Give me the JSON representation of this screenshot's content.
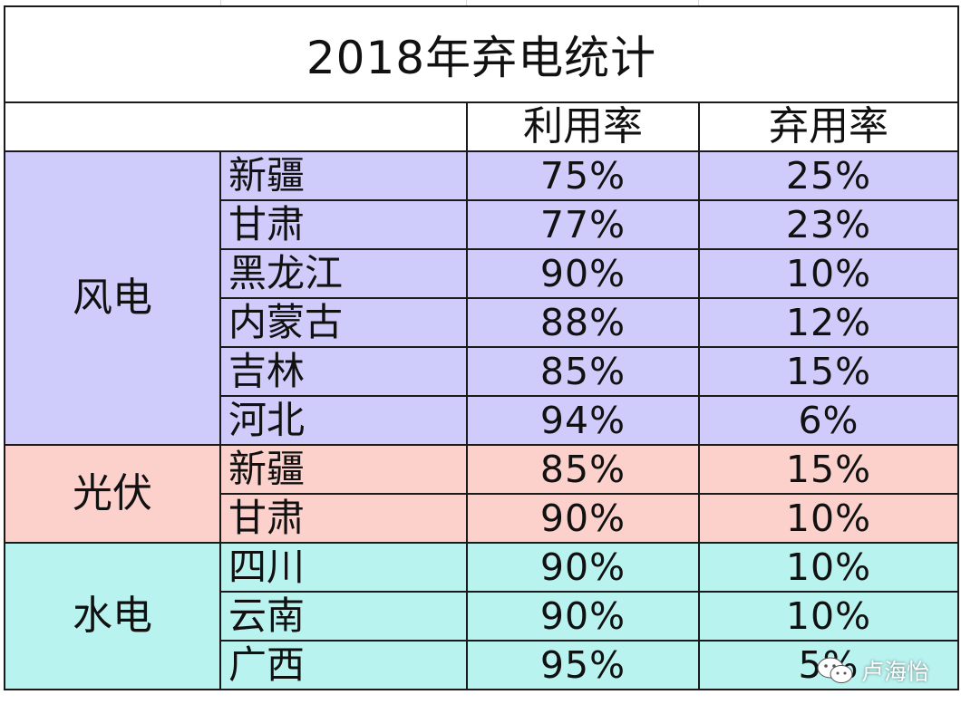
{
  "title": "2018年弃电统计",
  "columns": {
    "blank": "",
    "utilization": "利用率",
    "curtailment": "弃用率"
  },
  "colors": {
    "wind": "#cfcbfb",
    "solar": "#fcd0cb",
    "hydro": "#b9f3f0",
    "border": "#1a1a1a"
  },
  "groups": [
    {
      "name": "风电",
      "rows": [
        {
          "region": "新疆",
          "utilization": "75%",
          "curtailment": "25%"
        },
        {
          "region": "甘肃",
          "utilization": "77%",
          "curtailment": "23%"
        },
        {
          "region": "黑龙江",
          "utilization": "90%",
          "curtailment": "10%"
        },
        {
          "region": "内蒙古",
          "utilization": "88%",
          "curtailment": "12%"
        },
        {
          "region": "吉林",
          "utilization": "85%",
          "curtailment": "15%"
        },
        {
          "region": "河北",
          "utilization": "94%",
          "curtailment": "6%"
        }
      ]
    },
    {
      "name": "光伏",
      "rows": [
        {
          "region": "新疆",
          "utilization": "85%",
          "curtailment": "15%"
        },
        {
          "region": "甘肃",
          "utilization": "90%",
          "curtailment": "10%"
        }
      ]
    },
    {
      "name": "水电",
      "rows": [
        {
          "region": "四川",
          "utilization": "90%",
          "curtailment": "10%"
        },
        {
          "region": "云南",
          "utilization": "90%",
          "curtailment": "10%"
        },
        {
          "region": "广西",
          "utilization": "95%",
          "curtailment": "5%"
        }
      ]
    }
  ],
  "watermark": {
    "icon": "wechat-icon",
    "text": "卢海怡"
  },
  "chart_data": {
    "type": "table",
    "title": "2018年弃电统计",
    "columns": [
      "",
      "",
      "利用率",
      "弃用率"
    ],
    "rows": [
      [
        "风电",
        "新疆",
        "75%",
        "25%"
      ],
      [
        "风电",
        "甘肃",
        "77%",
        "23%"
      ],
      [
        "风电",
        "黑龙江",
        "90%",
        "10%"
      ],
      [
        "风电",
        "内蒙古",
        "88%",
        "12%"
      ],
      [
        "风电",
        "吉林",
        "85%",
        "15%"
      ],
      [
        "风电",
        "河北",
        "94%",
        "6%"
      ],
      [
        "光伏",
        "新疆",
        "85%",
        "15%"
      ],
      [
        "光伏",
        "甘肃",
        "90%",
        "10%"
      ],
      [
        "水电",
        "四川",
        "90%",
        "10%"
      ],
      [
        "水电",
        "云南",
        "90%",
        "10%"
      ],
      [
        "水电",
        "广西",
        "95%",
        "5%"
      ]
    ]
  }
}
